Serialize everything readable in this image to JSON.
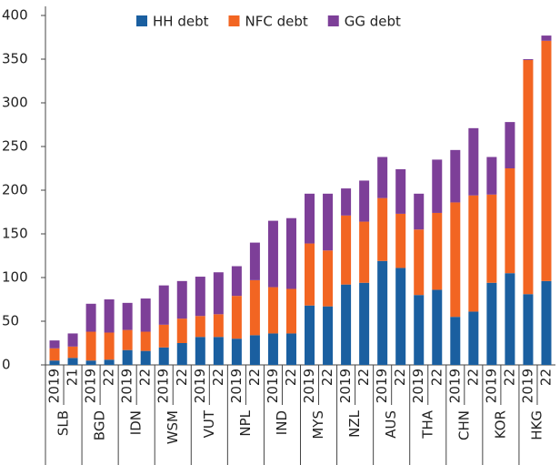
{
  "chart_data": {
    "type": "stacked_bar",
    "categories": [
      "2019",
      "21",
      "2019",
      "22",
      "2019",
      "22",
      "2019",
      "22",
      "2019",
      "22",
      "2019",
      "22",
      "2019",
      "22",
      "2019",
      "22",
      "2019",
      "22",
      "2019",
      "22",
      "2019",
      "22",
      "2019",
      "22",
      "2019",
      "22",
      "2019",
      "22"
    ],
    "groups": [
      "SLB",
      "BGD",
      "IDN",
      "WSM",
      "VUT",
      "NPL",
      "IND",
      "MYS",
      "NZL",
      "AUS",
      "THA",
      "CHN",
      "KOR",
      "HKG"
    ],
    "series": [
      {
        "name": "HH debt",
        "color": "#1a5fa0",
        "values": [
          5,
          8,
          5,
          6,
          17,
          16,
          20,
          25,
          32,
          32,
          30,
          34,
          36,
          36,
          68,
          67,
          92,
          94,
          119,
          111,
          80,
          86,
          55,
          61,
          94,
          105,
          81,
          96
        ]
      },
      {
        "name": "NFC debt",
        "color": "#f26522",
        "values": [
          14,
          13,
          33,
          31,
          23,
          22,
          26,
          28,
          24,
          26,
          49,
          63,
          53,
          51,
          71,
          64,
          79,
          70,
          72,
          62,
          75,
          88,
          131,
          133,
          101,
          120,
          268,
          275
        ]
      },
      {
        "name": "GG debt",
        "color": "#7d3f98",
        "values": [
          9,
          15,
          32,
          38,
          31,
          38,
          45,
          43,
          45,
          48,
          34,
          43,
          76,
          81,
          57,
          65,
          31,
          47,
          47,
          51,
          41,
          61,
          60,
          77,
          43,
          53,
          1,
          6
        ]
      }
    ],
    "ylim": [
      0,
      400
    ],
    "yticks": [
      0,
      50,
      100,
      150,
      200,
      250,
      300,
      350,
      400
    ],
    "legend": "top"
  }
}
